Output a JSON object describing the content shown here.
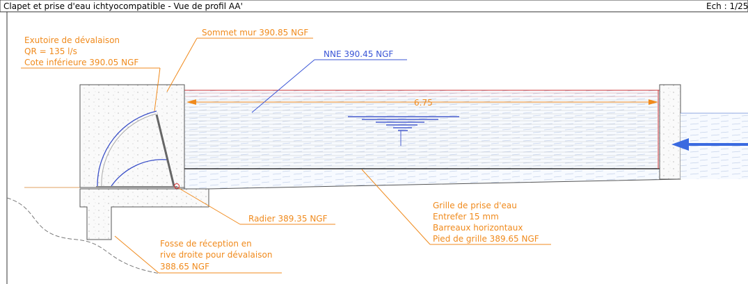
{
  "header": {
    "title": "Clapet et prise d'eau ichtyocompatible - Vue de profil AA'",
    "scale": "Ech : 1/25"
  },
  "annotations": {
    "exutoire": [
      "Exutoire de dévalaison",
      "QR = 135 l/s",
      "Cote inférieure 390.05 NGF"
    ],
    "sommet": "Sommet mur 390.85 NGF",
    "nne": "NNE 390.45 NGF",
    "dimension": "6.75",
    "radier": "Radier 389.35 NGF",
    "grille": [
      "Grille de prise d'eau",
      "Entrefer 15 mm",
      "Barreaux horizontaux",
      "Pied de grille 389.65 NGF"
    ],
    "fosse": [
      "Fosse de réception en",
      "rive droite pour dévalaison",
      "388.65 NGF"
    ]
  }
}
